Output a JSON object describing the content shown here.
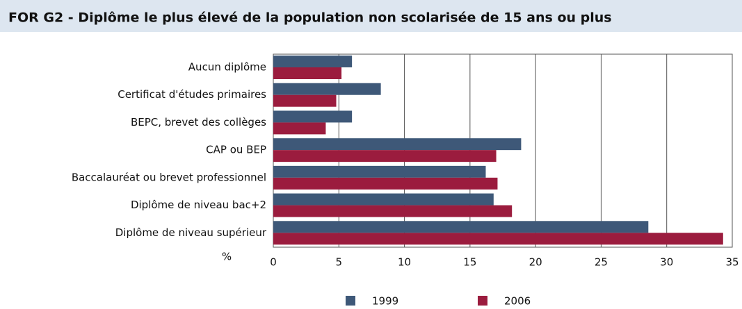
{
  "chart_data": {
    "type": "hbar",
    "title": "FOR G2 - Diplôme le plus élevé de la population non scolarisée de 15 ans ou plus",
    "x_label": "%",
    "categories": [
      "Aucun diplôme",
      "Certificat d'études primaires",
      "BEPC, brevet des collèges",
      "CAP ou BEP",
      "Baccalauréat ou brevet professionnel",
      "Diplôme de niveau bac+2",
      "Diplôme de niveau supérieur"
    ],
    "series": [
      {
        "name": "1999",
        "color": "#3e5878",
        "values": [
          6.0,
          8.2,
          6.0,
          18.9,
          16.2,
          16.8,
          28.6
        ]
      },
      {
        "name": "2006",
        "color": "#9b1c3e",
        "values": [
          5.2,
          4.8,
          4.0,
          17.0,
          17.1,
          18.2,
          34.3
        ]
      }
    ],
    "xlim": [
      0,
      35
    ],
    "xticks": [
      0,
      5,
      10,
      15,
      20,
      25,
      30,
      35
    ],
    "grid": true,
    "legend": "bottom"
  }
}
